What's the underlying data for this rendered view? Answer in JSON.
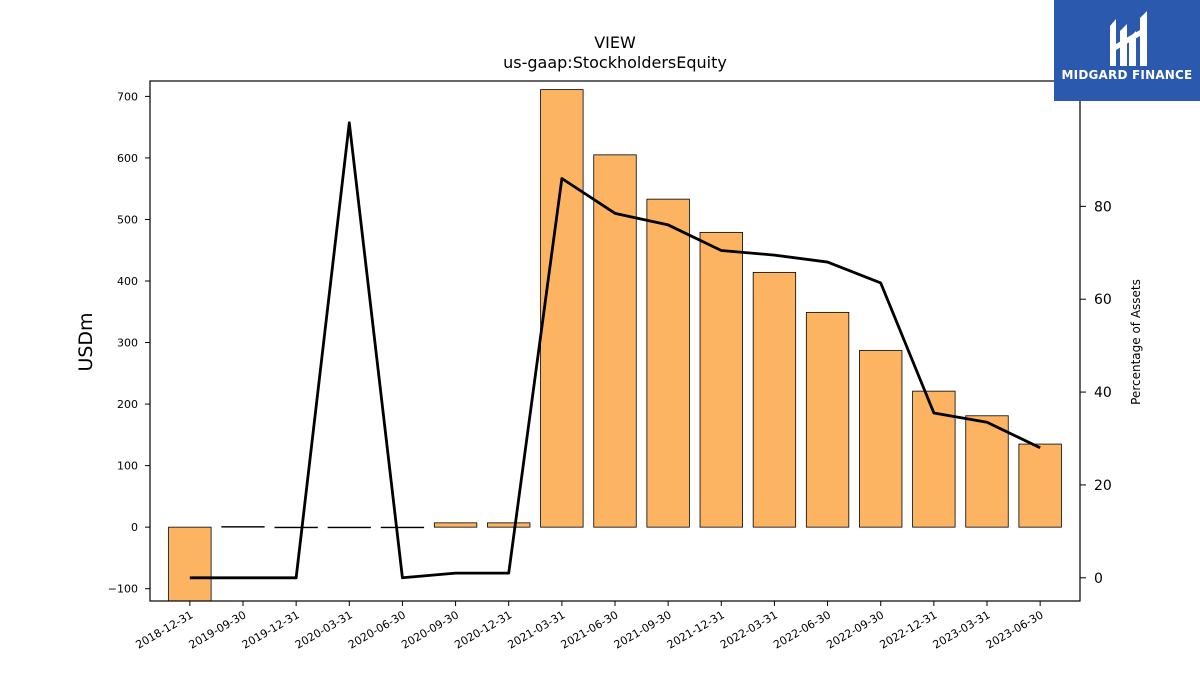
{
  "logo": {
    "text": "MIDGARD FINANCE",
    "icon": "midgard-monogram-icon",
    "background_color": "#2b59ad"
  },
  "chart_data": {
    "type": "bar",
    "title": "VIEW",
    "subtitle": "us-gaap:StockholdersEquity",
    "ylabel": "USDm",
    "y2label": "Percentage of Assets",
    "categories": [
      "2018-12-31",
      "2019-09-30",
      "2019-12-31",
      "2020-03-31",
      "2020-06-30",
      "2020-09-30",
      "2020-12-31",
      "2021-03-31",
      "2021-06-30",
      "2021-09-30",
      "2021-12-31",
      "2022-03-31",
      "2022-06-30",
      "2022-09-30",
      "2022-12-31",
      "2023-03-31",
      "2023-06-30"
    ],
    "series": [
      {
        "axis": "left",
        "type": "bar",
        "values": [
          -120,
          1,
          -1,
          -1,
          -1,
          7,
          7,
          711,
          605,
          533,
          479,
          414,
          349,
          287,
          221,
          181,
          135
        ],
        "color": "#fdb462"
      },
      {
        "axis": "right",
        "type": "line",
        "values": [
          0,
          0,
          0,
          98,
          0,
          1,
          1,
          86,
          78.5,
          76,
          70.5,
          69.5,
          68,
          63.5,
          35.5,
          33.5,
          28
        ],
        "color": "#000000"
      }
    ],
    "ylim": [
      -120,
      725
    ],
    "y2lim": [
      -5,
      107
    ],
    "yticks": [
      -100,
      0,
      100,
      200,
      300,
      400,
      500,
      600,
      700
    ],
    "y2ticks": [
      0,
      20,
      40,
      60,
      80
    ],
    "grid": false,
    "legend": "none"
  }
}
